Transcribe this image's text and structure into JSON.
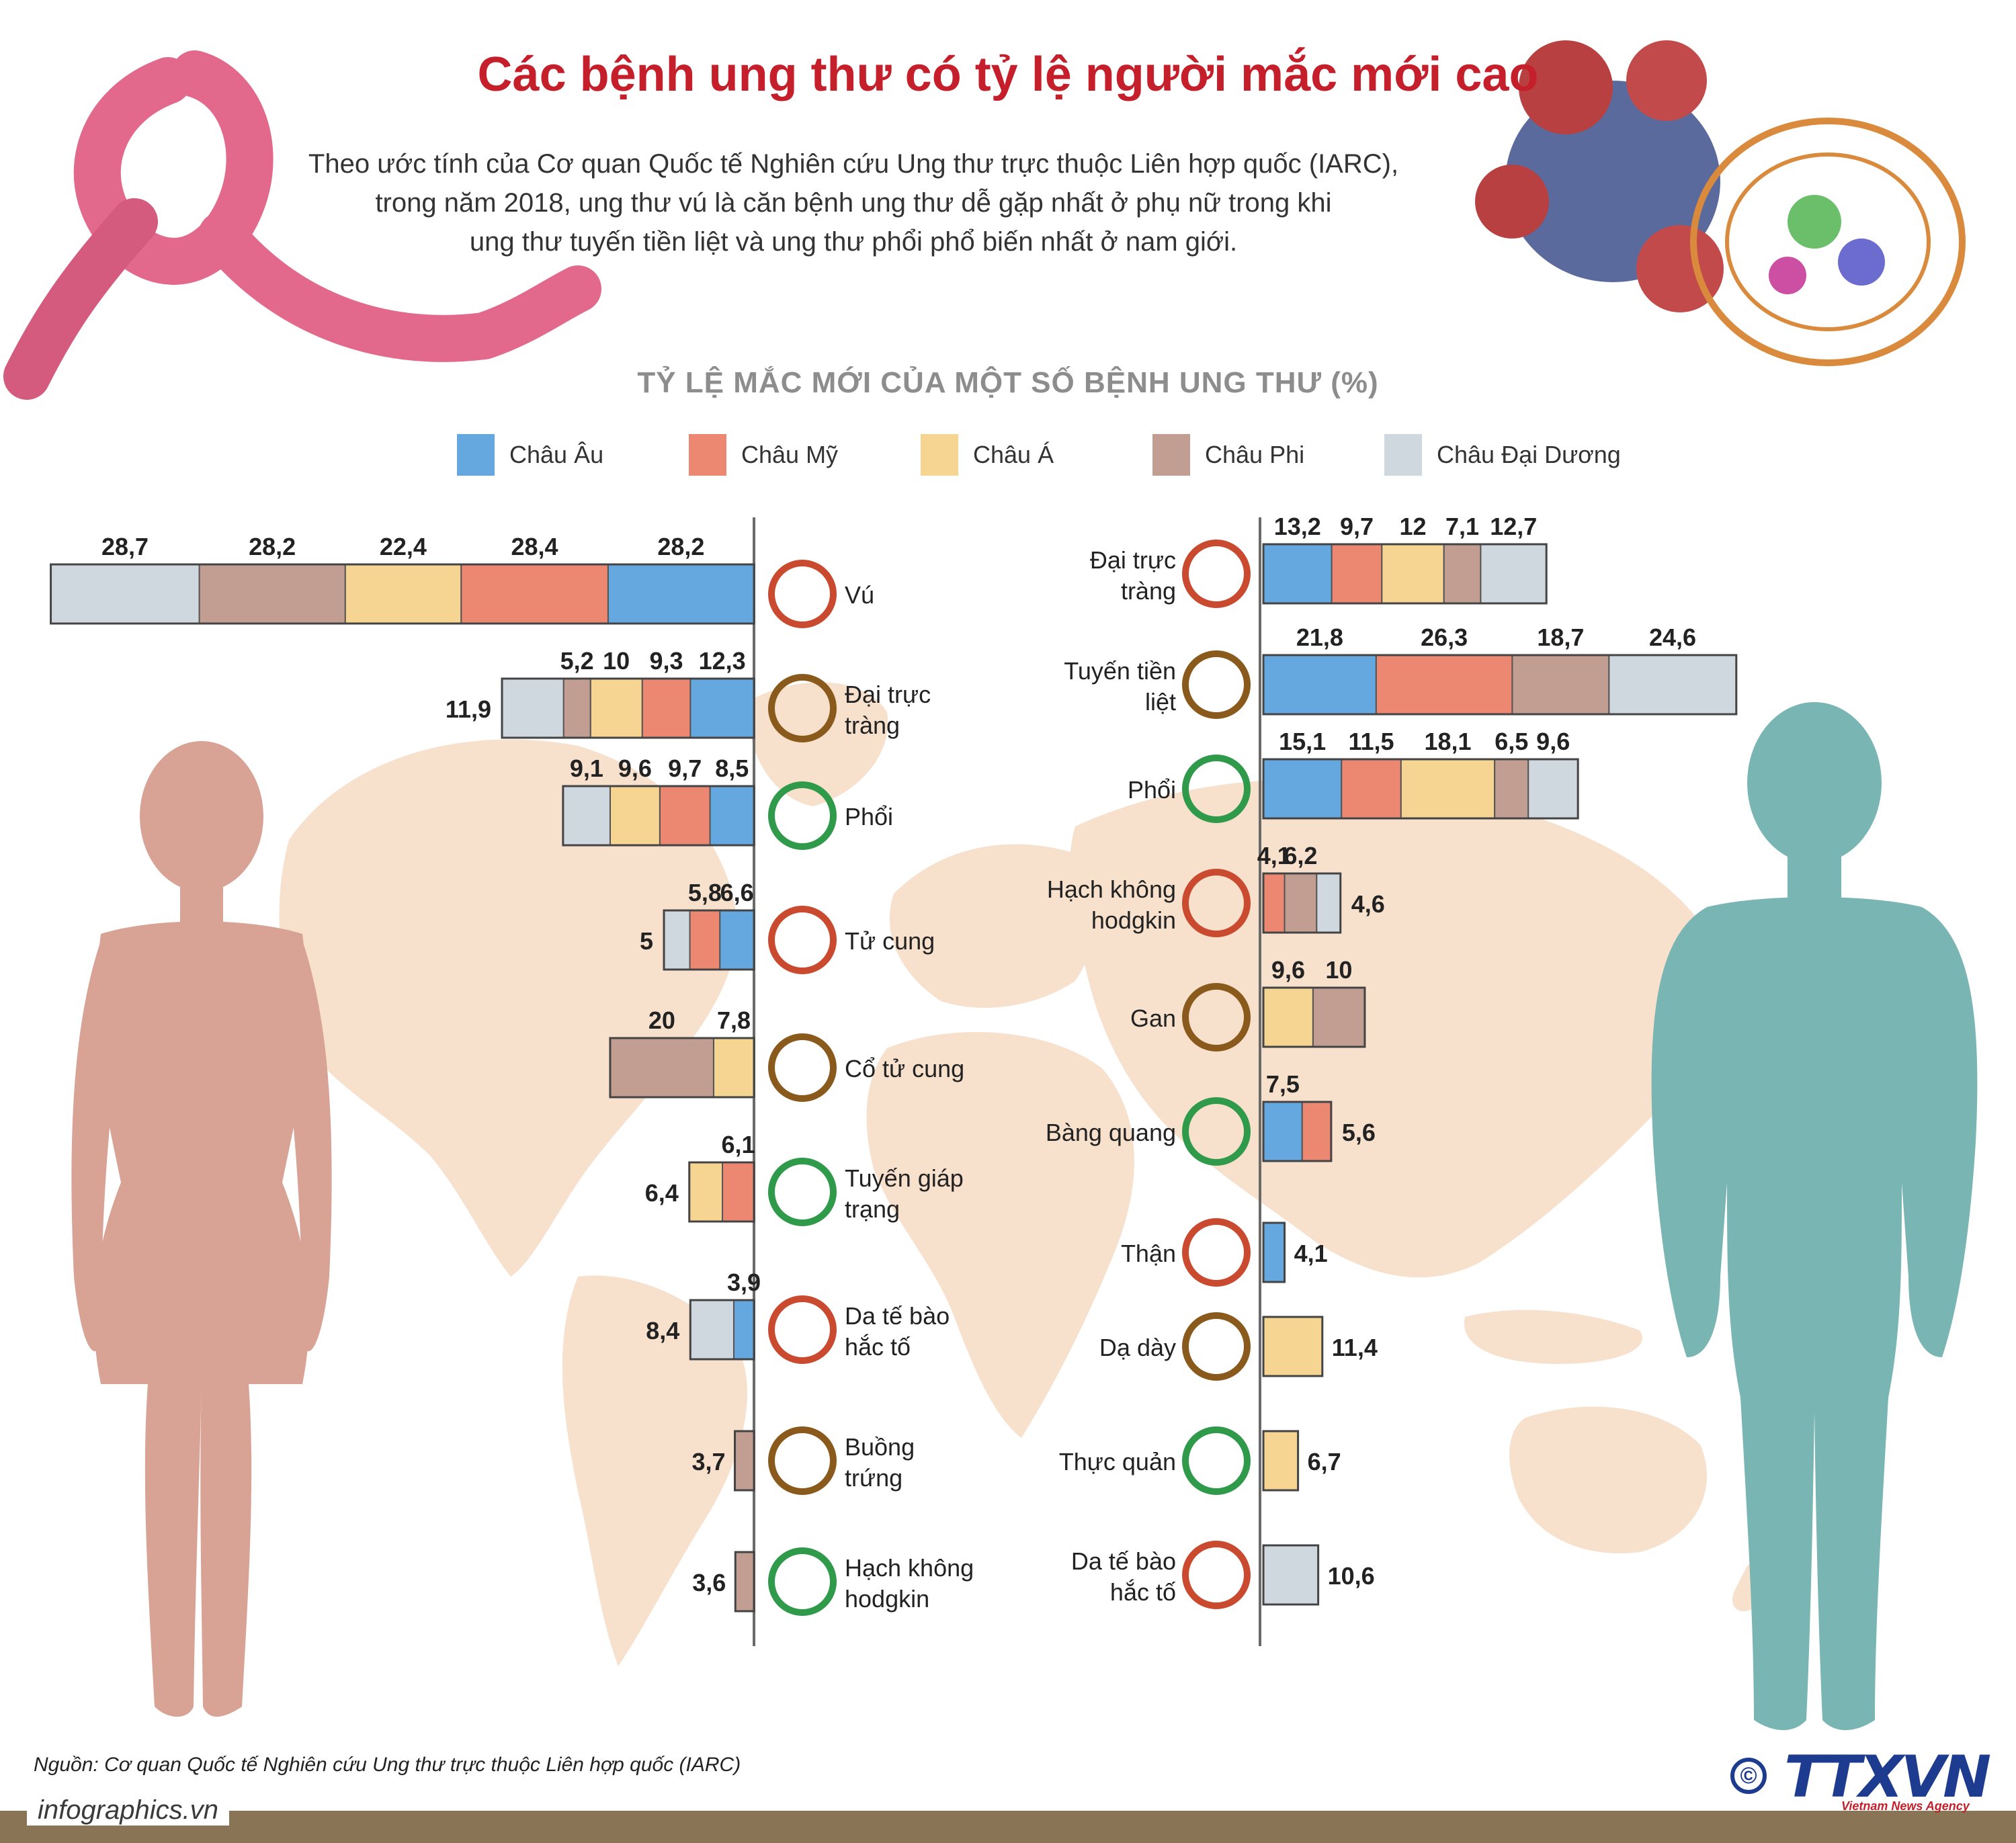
{
  "header": {
    "title": "Các bệnh ung thư có tỷ lệ người mắc mới cao",
    "intro": [
      "Theo ước tính của Cơ quan Quốc tế Nghiên cứu Ung thư trực thuộc Liên hợp quốc (IARC),",
      "trong năm 2018, ung thư vú là căn bệnh ung thư dễ gặp nhất ở phụ nữ trong khi",
      "ung thư tuyến tiền liệt và ung thư phổi phổ biến nhất ở nam giới."
    ]
  },
  "colors": {
    "Châu Âu": "#64a8df",
    "Châu Mỹ": "#ec8872",
    "Châu Á": "#f5d591",
    "Châu Phi": "#c29d91",
    "Châu Đại Dương": "#cfd8de",
    "title_red": "#c41f2a",
    "female_figure": "#d8a294",
    "male_figure": "#79b5b3",
    "map": "#f7e0cc",
    "ribbon": "#e2698c",
    "footer_brown": "#8a7456"
  },
  "chart_data": [
    {
      "type": "bar",
      "orientation": "horizontal",
      "stacked": true,
      "group": "female",
      "title": "TỶ LỆ MẮC MỚI CỦA MỘT SỐ BỆNH UNG THƯ (%)",
      "legend": [
        "Châu Âu",
        "Châu Mỹ",
        "Châu Á",
        "Châu Phi",
        "Châu Đại Dương"
      ],
      "legend_position": "top",
      "categories": [
        {
          "name": "Vú",
          "segments": [
            {
              "region": "Châu Âu",
              "value": 28.2,
              "label": "28,2"
            },
            {
              "region": "Châu Mỹ",
              "value": 28.4,
              "label": "28,4"
            },
            {
              "region": "Châu Á",
              "value": 22.4,
              "label": "22,4"
            },
            {
              "region": "Châu Phi",
              "value": 28.2,
              "label": "28,2"
            },
            {
              "region": "Châu Đại Dương",
              "value": 28.7,
              "label": "28,7"
            }
          ]
        },
        {
          "name": "Đại trực tràng",
          "segments": [
            {
              "region": "Châu Âu",
              "value": 12.3,
              "label": "12,3"
            },
            {
              "region": "Châu Mỹ",
              "value": 9.3,
              "label": "9,3"
            },
            {
              "region": "Châu Á",
              "value": 10,
              "label": "10"
            },
            {
              "region": "Châu Phi",
              "value": 5.2,
              "label": "5,2"
            },
            {
              "region": "Châu Đại Dương",
              "value": 11.9,
              "label": "11,9"
            }
          ]
        },
        {
          "name": "Phổi",
          "segments": [
            {
              "region": "Châu Âu",
              "value": 8.5,
              "label": "8,5"
            },
            {
              "region": "Châu Mỹ",
              "value": 9.7,
              "label": "9,7"
            },
            {
              "region": "Châu Á",
              "value": 9.6,
              "label": "9,6"
            },
            {
              "region": "Châu Đại Dương",
              "value": 9.1,
              "label": "9,1"
            }
          ]
        },
        {
          "name": "Tử cung",
          "segments": [
            {
              "region": "Châu Âu",
              "value": 6.6,
              "label": "6,6"
            },
            {
              "region": "Châu Mỹ",
              "value": 5.8,
              "label": "5,8"
            },
            {
              "region": "Châu Đại Dương",
              "value": 5,
              "label": "5"
            }
          ]
        },
        {
          "name": "Cổ tử cung",
          "segments": [
            {
              "region": "Châu Á",
              "value": 7.8,
              "label": "7,8"
            },
            {
              "region": "Châu Phi",
              "value": 20,
              "label": "20"
            }
          ]
        },
        {
          "name": "Tuyến giáp trạng",
          "segments": [
            {
              "region": "Châu Mỹ",
              "value": 6.1,
              "label": "6,1"
            },
            {
              "region": "Châu Á",
              "value": 6.4,
              "label": "6,4"
            }
          ]
        },
        {
          "name": "Da tế bào hắc tố",
          "segments": [
            {
              "region": "Châu Âu",
              "value": 3.9,
              "label": "3,9"
            },
            {
              "region": "Châu Đại Dương",
              "value": 8.4,
              "label": "8,4"
            }
          ]
        },
        {
          "name": "Buồng trứng",
          "segments": [
            {
              "region": "Châu Phi",
              "value": 3.7,
              "label": "3,7"
            }
          ]
        },
        {
          "name": "Hạch không hodgkin",
          "segments": [
            {
              "region": "Châu Phi",
              "value": 3.6,
              "label": "3,6"
            }
          ]
        }
      ]
    },
    {
      "type": "bar",
      "orientation": "horizontal",
      "stacked": true,
      "group": "male",
      "legend": [
        "Châu Âu",
        "Châu Mỹ",
        "Châu Á",
        "Châu Phi",
        "Châu Đại Dương"
      ],
      "categories": [
        {
          "name": "Đại trực tràng",
          "segments": [
            {
              "region": "Châu Âu",
              "value": 13.2,
              "label": "13,2"
            },
            {
              "region": "Châu Mỹ",
              "value": 9.7,
              "label": "9,7"
            },
            {
              "region": "Châu Á",
              "value": 12,
              "label": "12"
            },
            {
              "region": "Châu Phi",
              "value": 7.1,
              "label": "7,1"
            },
            {
              "region": "Châu Đại Dương",
              "value": 12.7,
              "label": "12,7"
            }
          ]
        },
        {
          "name": "Tuyến tiền liệt",
          "segments": [
            {
              "region": "Châu Âu",
              "value": 21.8,
              "label": "21,8"
            },
            {
              "region": "Châu Mỹ",
              "value": 26.3,
              "label": "26,3"
            },
            {
              "region": "Châu Phi",
              "value": 18.7,
              "label": "18,7"
            },
            {
              "region": "Châu Đại Dương",
              "value": 24.6,
              "label": "24,6"
            }
          ]
        },
        {
          "name": "Phổi",
          "segments": [
            {
              "region": "Châu Âu",
              "value": 15.1,
              "label": "15,1"
            },
            {
              "region": "Châu Mỹ",
              "value": 11.5,
              "label": "11,5"
            },
            {
              "region": "Châu Á",
              "value": 18.1,
              "label": "18,1"
            },
            {
              "region": "Châu Phi",
              "value": 6.5,
              "label": "6,5"
            },
            {
              "region": "Châu Đại Dương",
              "value": 9.6,
              "label": "9,6"
            }
          ]
        },
        {
          "name": "Hạch không hodgkin",
          "segments": [
            {
              "region": "Châu Mỹ",
              "value": 4.1,
              "label": "4,1"
            },
            {
              "region": "Châu Phi",
              "value": 6.2,
              "label": "6,2"
            },
            {
              "region": "Châu Đại Dương",
              "value": 4.6,
              "label": "4,6"
            }
          ]
        },
        {
          "name": "Gan",
          "segments": [
            {
              "region": "Châu Á",
              "value": 9.6,
              "label": "9,6"
            },
            {
              "region": "Châu Phi",
              "value": 10,
              "label": "10"
            }
          ]
        },
        {
          "name": "Bàng quang",
          "segments": [
            {
              "region": "Châu Âu",
              "value": 7.5,
              "label": "7,5"
            },
            {
              "region": "Châu Mỹ",
              "value": 5.6,
              "label": "5,6"
            }
          ]
        },
        {
          "name": "Thận",
          "segments": [
            {
              "region": "Châu Âu",
              "value": 4.1,
              "label": "4,1"
            }
          ]
        },
        {
          "name": "Dạ dày",
          "segments": [
            {
              "region": "Châu Á",
              "value": 11.4,
              "label": "11,4"
            }
          ]
        },
        {
          "name": "Thực quản",
          "segments": [
            {
              "region": "Châu Á",
              "value": 6.7,
              "label": "6,7"
            }
          ]
        },
        {
          "name": "Da tế bào hắc tố",
          "segments": [
            {
              "region": "Châu Đại Dương",
              "value": 10.6,
              "label": "10,6"
            }
          ]
        }
      ]
    }
  ],
  "footer": {
    "source": "Nguồn: Cơ quan Quốc tế Nghiên cứu Ung thư trực thuộc Liên hợp quốc (IARC)",
    "site": "infographics.vn",
    "logo_text": "TTXVN",
    "logo_subtext": "Vietnam News Agency",
    "copyright": "©"
  }
}
